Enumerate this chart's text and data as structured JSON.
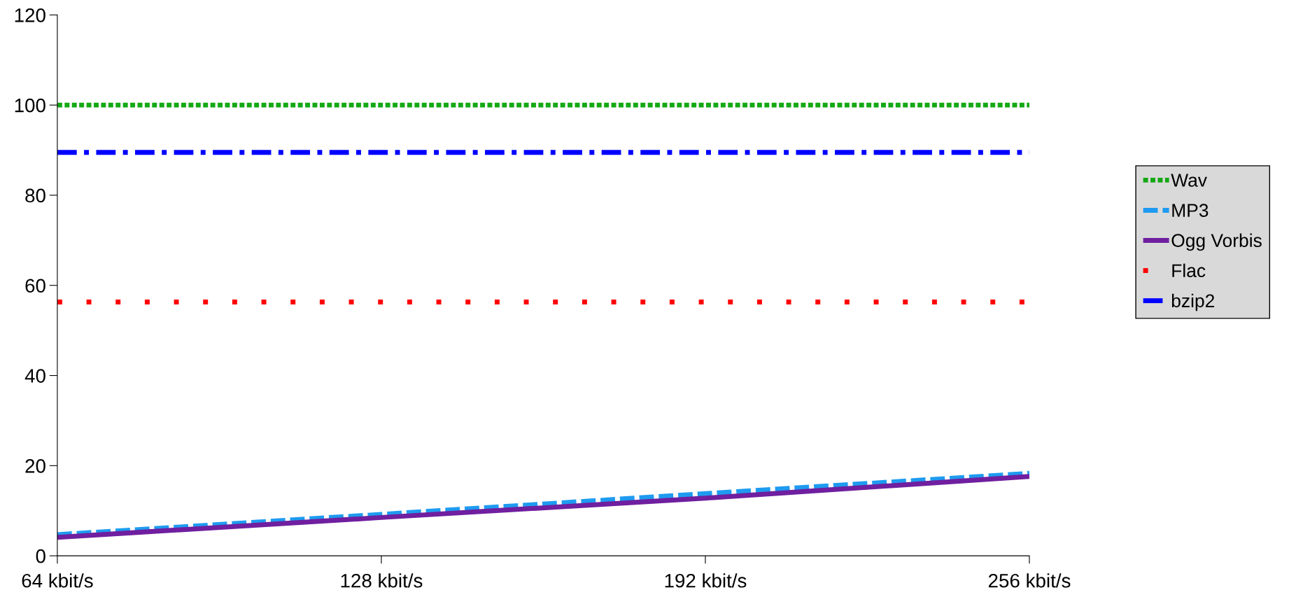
{
  "chart_data": {
    "type": "line",
    "categories": [
      "64 kbit/s",
      "128 kbit/s",
      "192 kbit/s",
      "256 kbit/s"
    ],
    "series": [
      {
        "name": "Wav",
        "color": "#14a814",
        "line_style": "dotted",
        "values": [
          100,
          100,
          100,
          100
        ]
      },
      {
        "name": "MP3",
        "color": "#1e9bf0",
        "line_style": "dashed",
        "values": [
          4.7,
          9.2,
          13.8,
          18.3
        ]
      },
      {
        "name": "Ogg Vorbis",
        "color": "#6f1f9f",
        "line_style": "solid",
        "values": [
          4.1,
          8.5,
          12.8,
          17.6
        ]
      },
      {
        "name": "Flac",
        "color": "#ff0000",
        "line_style": "sparse_dotted",
        "values": [
          56.3,
          56.3,
          56.3,
          56.3
        ]
      },
      {
        "name": "bzip2",
        "color": "#0000ff",
        "line_style": "dashdot",
        "values": [
          89.5,
          89.5,
          89.5,
          89.5
        ]
      }
    ],
    "ylim": [
      0,
      120
    ],
    "yticks": [
      0,
      20,
      40,
      60,
      80,
      100,
      120
    ],
    "grid": false,
    "legend": "right",
    "marker": "none"
  }
}
